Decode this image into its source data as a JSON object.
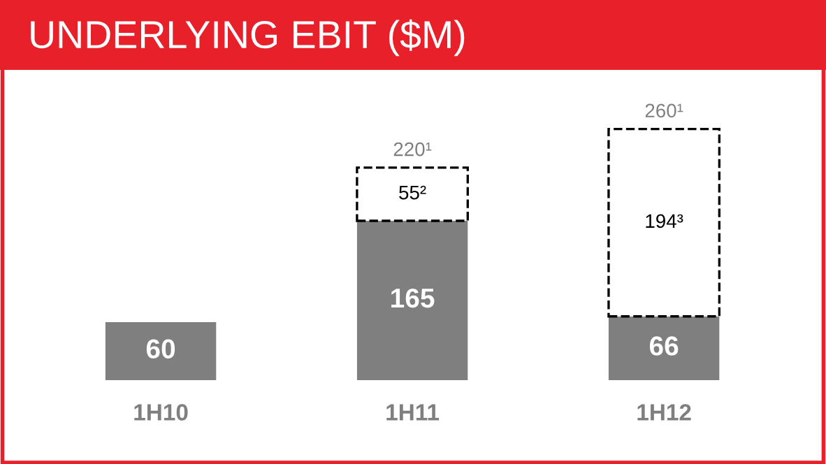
{
  "chart_data": {
    "type": "bar",
    "title": "UNDERLYING EBIT ($M)",
    "stacked": true,
    "categories": [
      "1H10",
      "1H11",
      "1H12"
    ],
    "series": [
      {
        "color": "#7f7f7f",
        "values": [
          60,
          165,
          66
        ],
        "value_labels": [
          "60",
          "165",
          "66"
        ]
      },
      {
        "color": "#ffffff",
        "line_style": "dashed",
        "values": [
          null,
          55,
          194
        ],
        "value_labels": [
          null,
          "55²",
          "194³"
        ]
      }
    ],
    "totals": [
      null,
      "220¹",
      "260¹"
    ],
    "grid": false,
    "legend": false
  }
}
